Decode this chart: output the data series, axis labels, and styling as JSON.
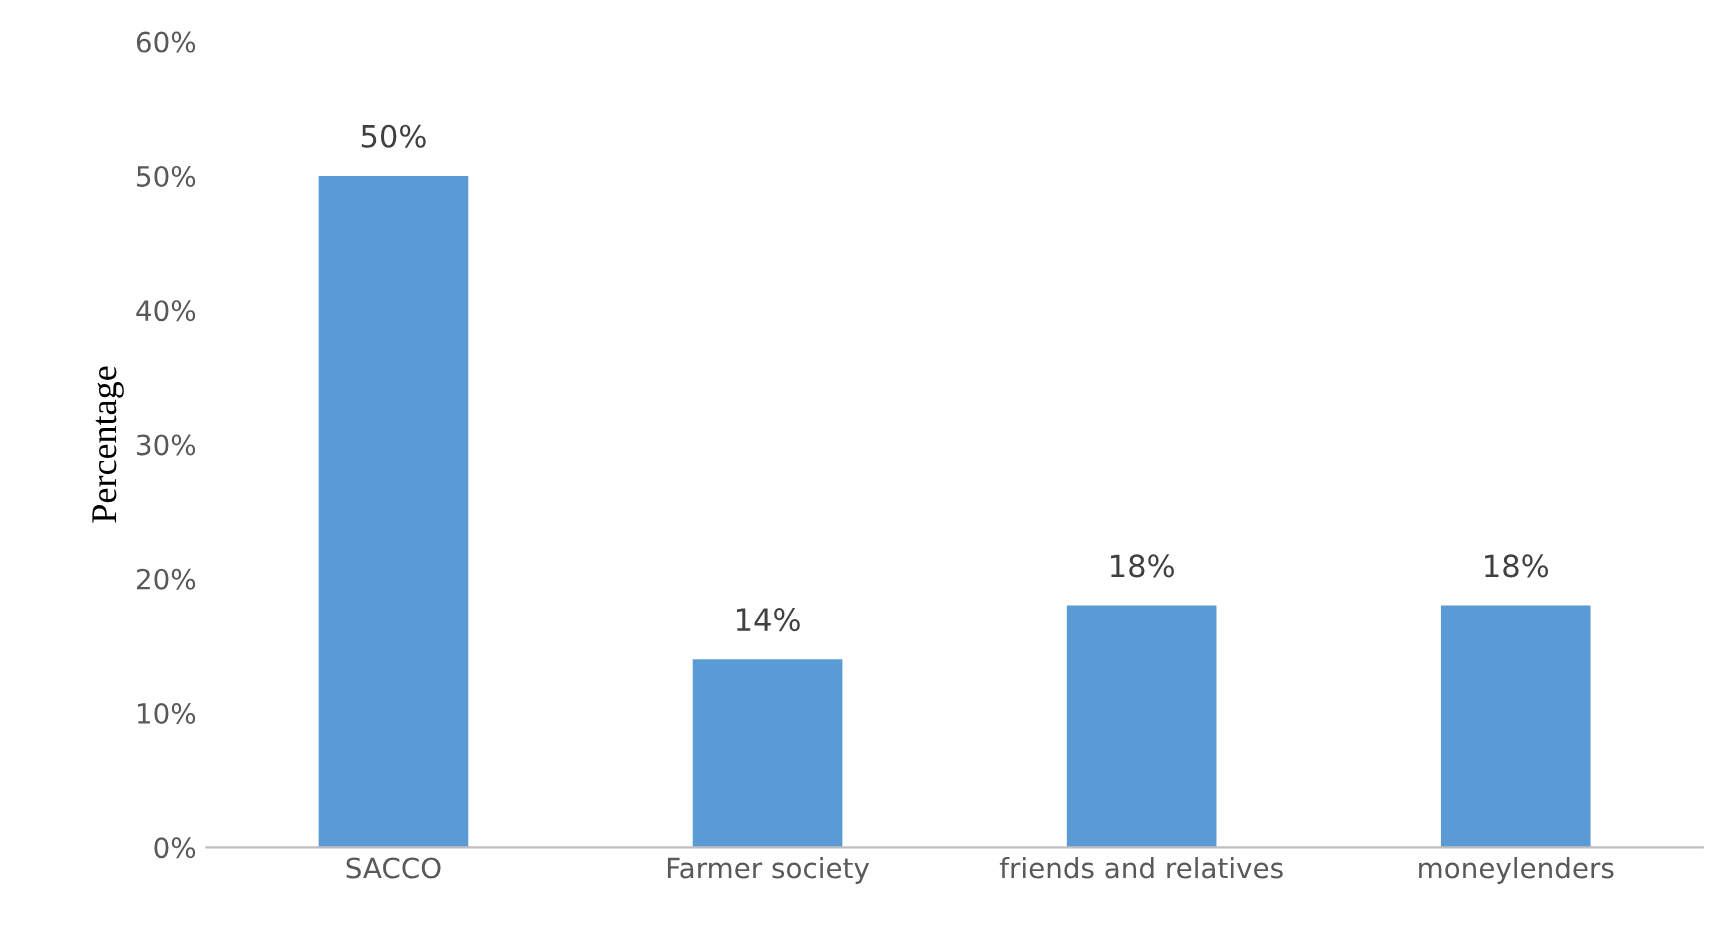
{
  "chart_data": {
    "type": "bar",
    "ylabel": "Percentage",
    "categories": [
      "SACCO",
      "Farmer society",
      "friends and relatives",
      "moneylenders"
    ],
    "values": [
      50,
      14,
      18,
      18
    ],
    "color": "#5b9bd5",
    "value_labels": [
      "50%",
      "14%",
      "18%",
      "18%"
    ],
    "ylim": [
      0,
      60
    ],
    "yticks": [
      {
        "value": 0,
        "label": "0%"
      },
      {
        "value": 10,
        "label": "10%"
      },
      {
        "value": 20,
        "label": "20%"
      },
      {
        "value": 30,
        "label": "30%"
      },
      {
        "value": 40,
        "label": "40%"
      },
      {
        "value": 50,
        "label": "50%"
      },
      {
        "value": 60,
        "label": "60%"
      }
    ],
    "grid": false
  }
}
